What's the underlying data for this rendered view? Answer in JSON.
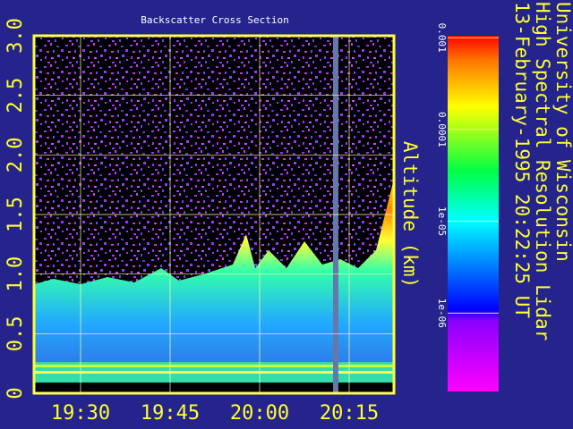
{
  "chart_data": {
    "type": "heatmap",
    "title": "Backscatter Cross Section",
    "annotations": [
      "University of Wisconsin",
      "High Spectral Resolution Lidar",
      "13-February-1995 20:22:25 UT"
    ],
    "ylabel": "Altitude (km)",
    "xlim": [
      1162.2,
      1222.5
    ],
    "xticks": [
      {
        "value": 1170,
        "label": "19:30"
      },
      {
        "value": 1185,
        "label": "19:45"
      },
      {
        "value": 1200,
        "label": "20:00"
      },
      {
        "value": 1215,
        "label": "20:15"
      }
    ],
    "ylim": [
      0,
      3
    ],
    "yticks": [
      0,
      {
        "value": 0.5,
        "label": "0.5"
      },
      {
        "value": 1,
        "label": "1.0"
      },
      {
        "value": 1.5,
        "label": "1.5"
      },
      {
        "value": 2,
        "label": "2.0"
      },
      {
        "value": 2.5,
        "label": "2.5"
      },
      {
        "value": 3,
        "label": "3.0"
      }
    ],
    "grid": true,
    "colorbar": {
      "scale": "log",
      "lim": [
        1.4e-07,
        0.00105
      ],
      "ticks": [
        0.001,
        0.0001,
        {
          "value": 1e-05,
          "label": "1e-05"
        },
        {
          "value": 1e-06,
          "label": "1e-06"
        }
      ]
    }
  }
}
